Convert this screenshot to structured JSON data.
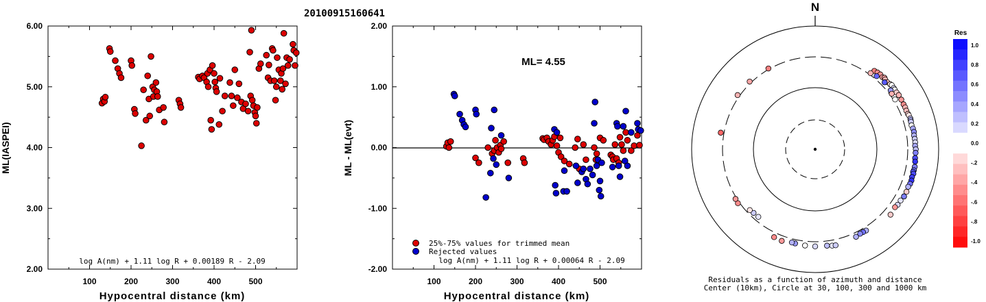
{
  "title": "20100915160641",
  "chart_data": [
    {
      "type": "scatter",
      "name": "ML vs distance",
      "xlabel": "Hypocentral distance (km)",
      "ylabel": "ML(IASPEI)",
      "xlim": [
        0,
        600
      ],
      "ylim": [
        2.0,
        6.0
      ],
      "xticks": [
        "100",
        "200",
        "300",
        "400",
        "500"
      ],
      "yticks": [
        "2.00",
        "3.00",
        "4.00",
        "5.00",
        "6.00"
      ],
      "formula": "log A(nm) + 1.11 log R + 0.00189 R - 2.09",
      "color": "#dd0000",
      "points": [
        [
          130,
          4.73
        ],
        [
          133,
          4.8
        ],
        [
          136,
          4.76
        ],
        [
          138,
          4.83
        ],
        [
          148,
          5.63
        ],
        [
          150,
          5.58
        ],
        [
          162,
          5.43
        ],
        [
          168,
          5.3
        ],
        [
          172,
          5.22
        ],
        [
          176,
          5.15
        ],
        [
          200,
          5.43
        ],
        [
          202,
          5.35
        ],
        [
          208,
          4.63
        ],
        [
          210,
          4.56
        ],
        [
          225,
          4.03
        ],
        [
          230,
          4.95
        ],
        [
          236,
          4.45
        ],
        [
          240,
          5.18
        ],
        [
          243,
          4.8
        ],
        [
          245,
          4.52
        ],
        [
          248,
          5.5
        ],
        [
          252,
          5.0
        ],
        [
          254,
          4.84
        ],
        [
          256,
          4.95
        ],
        [
          260,
          5.07
        ],
        [
          262,
          4.92
        ],
        [
          264,
          4.84
        ],
        [
          268,
          4.62
        ],
        [
          278,
          4.66
        ],
        [
          280,
          4.42
        ],
        [
          315,
          4.78
        ],
        [
          318,
          4.72
        ],
        [
          320,
          4.66
        ],
        [
          362,
          5.16
        ],
        [
          365,
          5.13
        ],
        [
          372,
          5.18
        ],
        [
          376,
          5.15
        ],
        [
          382,
          5.08
        ],
        [
          384,
          5.22
        ],
        [
          386,
          5.0
        ],
        [
          390,
          5.28
        ],
        [
          392,
          4.45
        ],
        [
          394,
          4.3
        ],
        [
          396,
          5.35
        ],
        [
          400,
          5.22
        ],
        [
          402,
          5.08
        ],
        [
          404,
          4.98
        ],
        [
          406,
          4.92
        ],
        [
          412,
          4.38
        ],
        [
          414,
          5.14
        ],
        [
          420,
          4.6
        ],
        [
          426,
          4.85
        ],
        [
          438,
          5.07
        ],
        [
          442,
          4.85
        ],
        [
          446,
          4.69
        ],
        [
          450,
          5.28
        ],
        [
          456,
          4.82
        ],
        [
          460,
          5.05
        ],
        [
          466,
          4.75
        ],
        [
          470,
          4.64
        ],
        [
          476,
          4.72
        ],
        [
          482,
          4.6
        ],
        [
          486,
          5.57
        ],
        [
          488,
          4.85
        ],
        [
          490,
          5.93
        ],
        [
          492,
          4.78
        ],
        [
          495,
          4.69
        ],
        [
          498,
          4.58
        ],
        [
          500,
          4.52
        ],
        [
          502,
          4.4
        ],
        [
          504,
          4.66
        ],
        [
          508,
          5.3
        ],
        [
          512,
          5.38
        ],
        [
          526,
          5.52
        ],
        [
          530,
          5.15
        ],
        [
          532,
          5.36
        ],
        [
          536,
          5.1
        ],
        [
          540,
          5.63
        ],
        [
          542,
          5.6
        ],
        [
          545,
          5.1
        ],
        [
          548,
          4.78
        ],
        [
          550,
          5.0
        ],
        [
          552,
          5.48
        ],
        [
          556,
          5.28
        ],
        [
          560,
          5.1
        ],
        [
          562,
          5.22
        ],
        [
          564,
          4.96
        ],
        [
          566,
          5.3
        ],
        [
          568,
          5.88
        ],
        [
          572,
          5.05
        ],
        [
          575,
          5.48
        ],
        [
          578,
          5.35
        ],
        [
          582,
          5.45
        ],
        [
          590,
          5.7
        ],
        [
          592,
          5.6
        ],
        [
          595,
          5.35
        ],
        [
          598,
          5.56
        ]
      ]
    },
    {
      "type": "scatter",
      "name": "ML residuals vs distance",
      "xlabel": "Hypocentral distance (km)",
      "ylabel": "ML - ML(evt)",
      "xlim": [
        0,
        600
      ],
      "ylim": [
        -2.0,
        2.0
      ],
      "xticks": [
        "100",
        "200",
        "300",
        "400",
        "500"
      ],
      "yticks": [
        "-2.00",
        "-1.00",
        "0.00",
        "1.00",
        "2.00"
      ],
      "annotation": "ML= 4.55",
      "formula": "log A(nm) + 1.11 log R + 0.00064 R - 2.09",
      "legend": [
        "25%-75% values for trimmed mean",
        "Rejected values"
      ],
      "series": [
        {
          "name": "25%-75% values for trimmed mean",
          "color": "#dd0000",
          "points": [
            [
              130,
              0.02
            ],
            [
              133,
              0.08
            ],
            [
              136,
              0.0
            ],
            [
              140,
              0.1
            ],
            [
              200,
              -0.17
            ],
            [
              208,
              -0.25
            ],
            [
              230,
              0.0
            ],
            [
              240,
              -0.1
            ],
            [
              245,
              -0.05
            ],
            [
              248,
              0.12
            ],
            [
              252,
              0.0
            ],
            [
              256,
              -0.08
            ],
            [
              260,
              0.04
            ],
            [
              262,
              -0.02
            ],
            [
              268,
              0.1
            ],
            [
              278,
              -0.25
            ],
            [
              315,
              -0.18
            ],
            [
              318,
              -0.25
            ],
            [
              362,
              0.15
            ],
            [
              365,
              0.13
            ],
            [
              372,
              0.16
            ],
            [
              376,
              0.1
            ],
            [
              382,
              0.05
            ],
            [
              386,
              0.12
            ],
            [
              390,
              0.18
            ],
            [
              396,
              0.03
            ],
            [
              400,
              -0.08
            ],
            [
              404,
              0.16
            ],
            [
              406,
              -0.15
            ],
            [
              414,
              -0.22
            ],
            [
              426,
              -0.27
            ],
            [
              440,
              0.0
            ],
            [
              446,
              0.14
            ],
            [
              450,
              -0.35
            ],
            [
              460,
              0.05
            ],
            [
              466,
              -0.2
            ],
            [
              486,
              0.0
            ],
            [
              490,
              -0.2
            ],
            [
              492,
              -0.1
            ],
            [
              500,
              0.16
            ],
            [
              508,
              0.12
            ],
            [
              526,
              -0.12
            ],
            [
              530,
              -0.15
            ],
            [
              532,
              -0.2
            ],
            [
              536,
              0.05
            ],
            [
              540,
              -0.18
            ],
            [
              545,
              -0.25
            ],
            [
              548,
              0.17
            ],
            [
              552,
              0.05
            ],
            [
              556,
              -0.05
            ],
            [
              562,
              0.25
            ],
            [
              566,
              0.12
            ],
            [
              575,
              -0.05
            ],
            [
              582,
              0.03
            ],
            [
              590,
              0.2
            ],
            [
              595,
              0.04
            ]
          ]
        },
        {
          "name": "Rejected values",
          "color": "#0000cc",
          "points": [
            [
              148,
              0.88
            ],
            [
              150,
              0.85
            ],
            [
              162,
              0.55
            ],
            [
              168,
              0.45
            ],
            [
              172,
              0.38
            ],
            [
              176,
              0.34
            ],
            [
              200,
              0.62
            ],
            [
              202,
              0.55
            ],
            [
              225,
              -0.82
            ],
            [
              236,
              -0.42
            ],
            [
              238,
              0.32
            ],
            [
              243,
              -0.18
            ],
            [
              245,
              0.62
            ],
            [
              250,
              -0.28
            ],
            [
              262,
              0.2
            ],
            [
              280,
              -0.5
            ],
            [
              390,
              0.3
            ],
            [
              392,
              -0.62
            ],
            [
              394,
              -0.75
            ],
            [
              396,
              0.25
            ],
            [
              412,
              -0.72
            ],
            [
              414,
              -0.38
            ],
            [
              420,
              -0.72
            ],
            [
              442,
              -0.3
            ],
            [
              446,
              -0.58
            ],
            [
              456,
              -0.4
            ],
            [
              460,
              -0.35
            ],
            [
              466,
              -0.52
            ],
            [
              470,
              -0.6
            ],
            [
              476,
              -0.35
            ],
            [
              482,
              -0.45
            ],
            [
              486,
              0.4
            ],
            [
              488,
              0.75
            ],
            [
              492,
              -0.3
            ],
            [
              495,
              -0.2
            ],
            [
              498,
              -0.7
            ],
            [
              500,
              -0.55
            ],
            [
              502,
              -0.8
            ],
            [
              504,
              -0.25
            ],
            [
              530,
              -0.32
            ],
            [
              540,
              0.4
            ],
            [
              542,
              0.35
            ],
            [
              545,
              -0.3
            ],
            [
              548,
              -0.48
            ],
            [
              556,
              0.35
            ],
            [
              560,
              -0.22
            ],
            [
              562,
              0.6
            ],
            [
              566,
              -0.3
            ],
            [
              575,
              0.25
            ],
            [
              590,
              0.4
            ],
            [
              592,
              0.3
            ],
            [
              598,
              0.28
            ]
          ]
        }
      ]
    },
    {
      "type": "scatter",
      "name": "Residuals polar plot",
      "north_label": "N",
      "caption_1": "Residuals as a function of azimuth and distance",
      "caption_2": "Center (10km), Circle at 30, 100, 300 and 1000 km",
      "colorbar_title": "Res",
      "colorbar_ticks": [
        "1.0",
        "0.8",
        "0.6",
        "0.4",
        "0.2",
        "0.0",
        "-.2",
        "-.4",
        "-.6",
        "-.8",
        "-1.0"
      ],
      "points_az_dist_res": [
        [
          37,
          375,
          -0.5
        ],
        [
          39,
          385,
          -0.45
        ],
        [
          41,
          390,
          -0.4
        ],
        [
          43,
          380,
          -0.35
        ],
        [
          44,
          395,
          -0.35
        ],
        [
          45,
          385,
          -0.3
        ],
        [
          47,
          378,
          -0.25
        ],
        [
          49,
          390,
          -0.1
        ],
        [
          50,
          400,
          0.0
        ],
        [
          52,
          395,
          0.1
        ],
        [
          53,
          392,
          -0.05
        ],
        [
          55,
          390,
          -0.2
        ],
        [
          57,
          395,
          -0.3
        ],
        [
          60,
          392,
          -0.4
        ],
        [
          63,
          388,
          -0.45
        ],
        [
          65,
          390,
          -0.3
        ],
        [
          67,
          385,
          -0.25
        ],
        [
          69,
          390,
          -0.2
        ],
        [
          70,
          395,
          -0.1
        ],
        [
          72,
          402,
          0.2
        ],
        [
          73,
          398,
          0.3
        ],
        [
          74,
          395,
          0.2
        ],
        [
          76,
          390,
          0.0
        ],
        [
          78,
          400,
          0.35
        ],
        [
          80,
          405,
          0.45
        ],
        [
          82,
          398,
          0.3
        ],
        [
          84,
          402,
          0.2
        ],
        [
          86,
          405,
          0.15
        ],
        [
          88,
          400,
          0.35
        ],
        [
          90,
          410,
          0.25
        ],
        [
          92,
          408,
          0.5
        ],
        [
          95,
          405,
          0.7
        ],
        [
          97,
          412,
          0.8
        ],
        [
          100,
          418,
          0.5
        ],
        [
          102,
          415,
          0.55
        ],
        [
          103,
          408,
          0.65
        ],
        [
          104,
          420,
          0.7
        ],
        [
          106,
          412,
          0.75
        ],
        [
          108,
          420,
          0.8
        ],
        [
          110,
          416,
          0.55
        ],
        [
          112,
          405,
          0.3
        ],
        [
          115,
          412,
          -0.2
        ],
        [
          118,
          410,
          0.6
        ],
        [
          121,
          395,
          0.1
        ],
        [
          124,
          392,
          0.15
        ],
        [
          40,
          338,
          0.6
        ],
        [
          46,
          350,
          0.65
        ],
        [
          52,
          340,
          0.4
        ],
        [
          58,
          320,
          0.0
        ],
        [
          54,
          325,
          -0.3
        ],
        [
          36,
          320,
          -0.3
        ],
        [
          118,
          410,
          0.5
        ],
        [
          126,
          380,
          -0.4
        ],
        [
          131,
          398,
          -0.2
        ],
        [
          148,
          342,
          0.3
        ],
        [
          150,
          340,
          0.55
        ],
        [
          152,
          340,
          0.45
        ],
        [
          155,
          352,
          0.3
        ],
        [
          170,
          370,
          0.1
        ],
        [
          168,
          375,
          0.2
        ],
        [
          173,
          360,
          0.25
        ],
        [
          180,
          360,
          0.15
        ],
        [
          186,
          355,
          0.05
        ],
        [
          192,
          348,
          0.4
        ],
        [
          194,
          345,
          0.3
        ],
        [
          200,
          365,
          -0.4
        ],
        [
          205,
          358,
          -0.45
        ],
        [
          220,
          258,
          0.1
        ],
        [
          224,
          260,
          0.2
        ],
        [
          227,
          267,
          -0.1
        ],
        [
          235,
          320,
          -0.45
        ],
        [
          238,
          315,
          -0.4
        ],
        [
          280,
          340,
          -0.6
        ],
        [
          305,
          325,
          -0.3
        ],
        [
          316,
          320,
          -0.35
        ],
        [
          330,
          310,
          -0.5
        ]
      ]
    }
  ]
}
